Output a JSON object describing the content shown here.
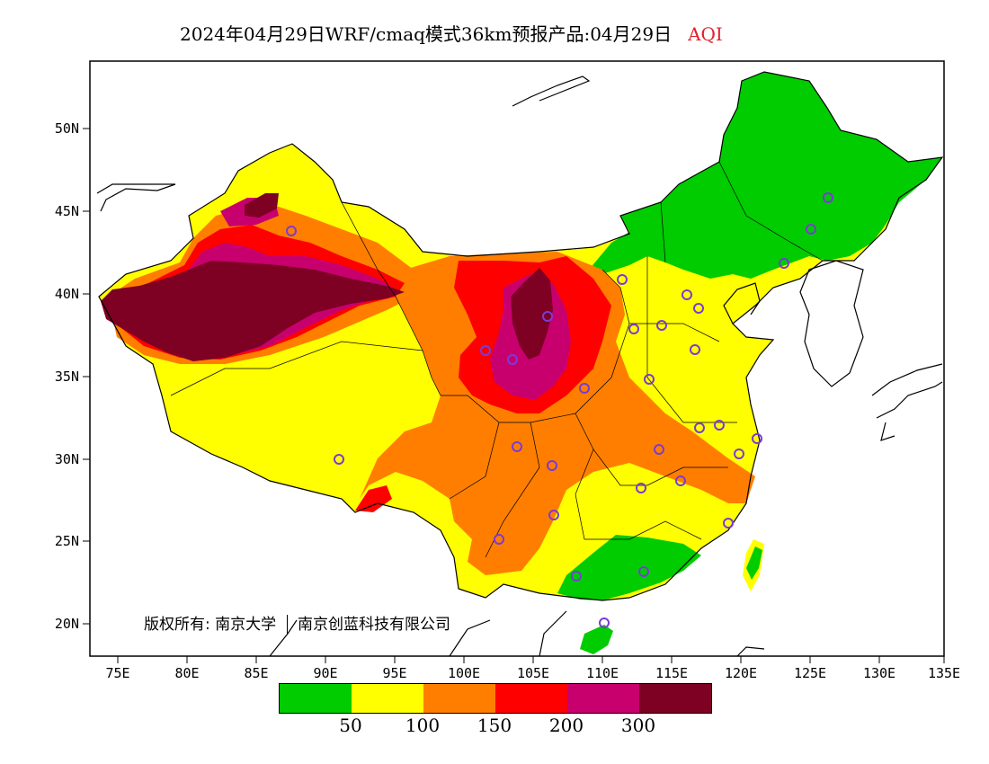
{
  "header": {
    "title": "2024年04月29日WRF/cmaq模式36km预报产品:04月29日",
    "pollutant": "AQI"
  },
  "axes": {
    "lat_labels": [
      "50N",
      "45N",
      "40N",
      "35N",
      "30N",
      "25N",
      "20N"
    ],
    "lon_labels": [
      "75E",
      "80E",
      "85E",
      "90E",
      "95E",
      "100E",
      "105E",
      "110E",
      "115E",
      "120E",
      "125E",
      "130E",
      "135E"
    ]
  },
  "copyright": {
    "owner_label": "版权所有:",
    "org1": "南京大学",
    "org2": "南京创蓝科技有限公司"
  },
  "legend": {
    "colors": [
      "#00cc00",
      "#ffff00",
      "#ff7e00",
      "#ff0000",
      "#c8006e",
      "#7e0023"
    ],
    "thresholds": [
      "50",
      "100",
      "150",
      "200",
      "300"
    ]
  }
}
